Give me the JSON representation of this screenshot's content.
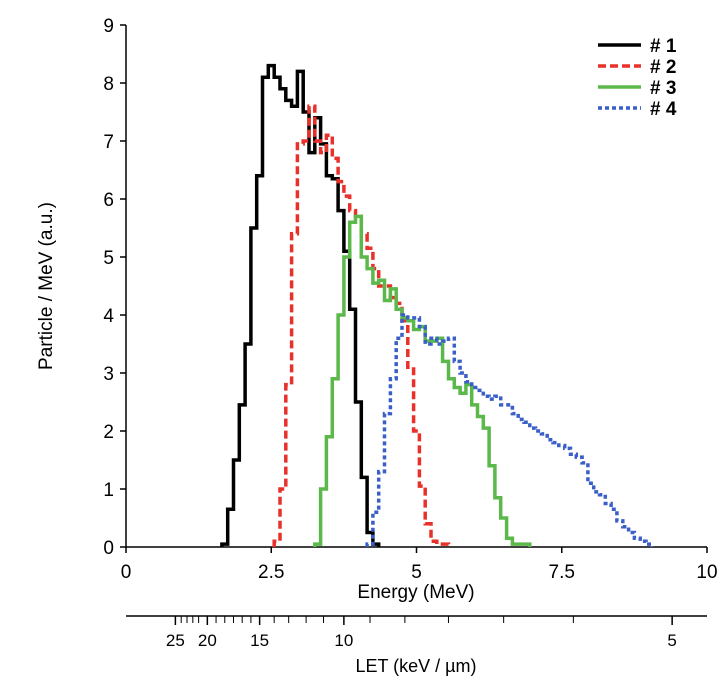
{
  "chart_data": {
    "type": "line",
    "xlabel": "Energy  (MeV)",
    "ylabel": "Particle / MeV  (a.u.)",
    "xlim": [
      0,
      10
    ],
    "ylim": [
      0,
      9
    ],
    "xticks": [
      0,
      2.5,
      5,
      7.5,
      10
    ],
    "xtick_labels": [
      "0",
      "2.5",
      "5",
      "7.5",
      "10"
    ],
    "yticks": [
      0,
      1,
      2,
      3,
      4,
      5,
      6,
      7,
      8,
      9
    ],
    "ytick_labels": [
      "0",
      "1",
      "2",
      "3",
      "4",
      "5",
      "6",
      "7",
      "8",
      "9"
    ],
    "grid": false,
    "legend_position": "top-right",
    "step": 0.1,
    "series": [
      {
        "name": "# 1",
        "color": "#000000",
        "style": "solid",
        "x": [
          1.7,
          1.8,
          1.9,
          2.0,
          2.1,
          2.2,
          2.3,
          2.4,
          2.5,
          2.6,
          2.7,
          2.8,
          2.9,
          3.0,
          3.1,
          3.2,
          3.3,
          3.4,
          3.5,
          3.6,
          3.7,
          3.8,
          3.9,
          4.0,
          4.1,
          4.2,
          4.3
        ],
        "y": [
          0.05,
          0.65,
          1.5,
          2.45,
          3.5,
          5.5,
          6.4,
          8.1,
          8.3,
          8.1,
          7.9,
          7.7,
          7.6,
          8.2,
          7.5,
          6.8,
          7.4,
          6.95,
          6.4,
          6.35,
          5.8,
          5.1,
          4.1,
          2.5,
          1.2,
          0.25,
          0.05
        ]
      },
      {
        "name": "# 2",
        "color": "#e8312a",
        "style": "dashed",
        "x": [
          2.6,
          2.7,
          2.8,
          2.9,
          3.0,
          3.1,
          3.2,
          3.3,
          3.4,
          3.5,
          3.6,
          3.7,
          3.8,
          3.9,
          4.0,
          4.1,
          4.2,
          4.3,
          4.4,
          4.5,
          4.6,
          4.7,
          4.8,
          4.9,
          5.0,
          5.1,
          5.2,
          5.3,
          5.4,
          5.5
        ],
        "y": [
          0.1,
          1.0,
          2.8,
          5.4,
          6.95,
          7.0,
          7.6,
          7.0,
          6.8,
          7.1,
          6.7,
          6.3,
          6.05,
          5.8,
          5.7,
          5.4,
          5.15,
          4.8,
          4.5,
          4.5,
          4.3,
          4.2,
          3.9,
          3.1,
          2.0,
          1.05,
          0.4,
          0.1,
          0.05,
          0.05
        ]
      },
      {
        "name": "# 3",
        "color": "#5bb84a",
        "style": "solid",
        "x": [
          3.3,
          3.4,
          3.5,
          3.6,
          3.7,
          3.8,
          3.9,
          4.0,
          4.1,
          4.2,
          4.3,
          4.4,
          4.5,
          4.6,
          4.7,
          4.8,
          4.9,
          5.0,
          5.1,
          5.2,
          5.3,
          5.4,
          5.5,
          5.6,
          5.7,
          5.8,
          5.9,
          6.0,
          6.1,
          6.2,
          6.3,
          6.4,
          6.5,
          6.6,
          6.7,
          6.8,
          6.9
        ],
        "y": [
          0.05,
          1.0,
          1.9,
          2.9,
          4.0,
          5.0,
          5.6,
          5.7,
          5.0,
          4.8,
          4.55,
          4.6,
          4.25,
          4.45,
          4.1,
          3.95,
          3.9,
          3.75,
          3.8,
          3.55,
          3.55,
          3.6,
          3.2,
          2.9,
          2.75,
          2.65,
          2.8,
          2.45,
          2.25,
          2.05,
          1.4,
          0.85,
          0.5,
          0.15,
          0.05,
          0.05,
          0.05
        ]
      },
      {
        "name": "# 4",
        "color": "#3a5fc8",
        "style": "dotted",
        "x": [
          4.2,
          4.3,
          4.4,
          4.5,
          4.6,
          4.7,
          4.8,
          4.9,
          5.0,
          5.1,
          5.2,
          5.3,
          5.4,
          5.5,
          5.6,
          5.7,
          5.8,
          5.9,
          6.0,
          6.1,
          6.2,
          6.3,
          6.4,
          6.5,
          6.6,
          6.7,
          6.8,
          6.9,
          7.0,
          7.1,
          7.2,
          7.3,
          7.4,
          7.5,
          7.6,
          7.7,
          7.8,
          7.9,
          8.0,
          8.1,
          8.2,
          8.3,
          8.4,
          8.5,
          8.6,
          8.7,
          8.8,
          8.9,
          9.0
        ],
        "y": [
          0.05,
          0.6,
          1.3,
          2.3,
          2.9,
          3.6,
          4.0,
          3.95,
          3.95,
          3.8,
          3.5,
          3.6,
          3.5,
          3.55,
          3.6,
          3.2,
          3.0,
          2.85,
          2.75,
          2.7,
          2.6,
          2.55,
          2.6,
          2.45,
          2.45,
          2.3,
          2.2,
          2.15,
          2.05,
          2.0,
          1.95,
          1.85,
          1.8,
          1.75,
          1.7,
          1.6,
          1.55,
          1.45,
          1.1,
          0.95,
          0.9,
          0.75,
          0.65,
          0.45,
          0.35,
          0.25,
          0.15,
          0.1,
          0.05
        ]
      }
    ],
    "secondary_axis": {
      "label": "LET  (keV / µm)",
      "labeled_ticks": [
        {
          "label": "25",
          "energy": 0.85
        },
        {
          "label": "20",
          "energy": 1.4
        },
        {
          "label": "15",
          "energy": 2.3
        },
        {
          "label": "10",
          "energy": 3.75
        },
        {
          "label": "5",
          "energy": 9.4
        }
      ],
      "minor_tick_energies": [
        0.95,
        1.05,
        1.15,
        1.25,
        1.55,
        1.7,
        1.85,
        2.0,
        2.15,
        2.55,
        2.8,
        3.1,
        3.4,
        4.2,
        4.8,
        5.55,
        6.5,
        7.7
      ]
    }
  }
}
